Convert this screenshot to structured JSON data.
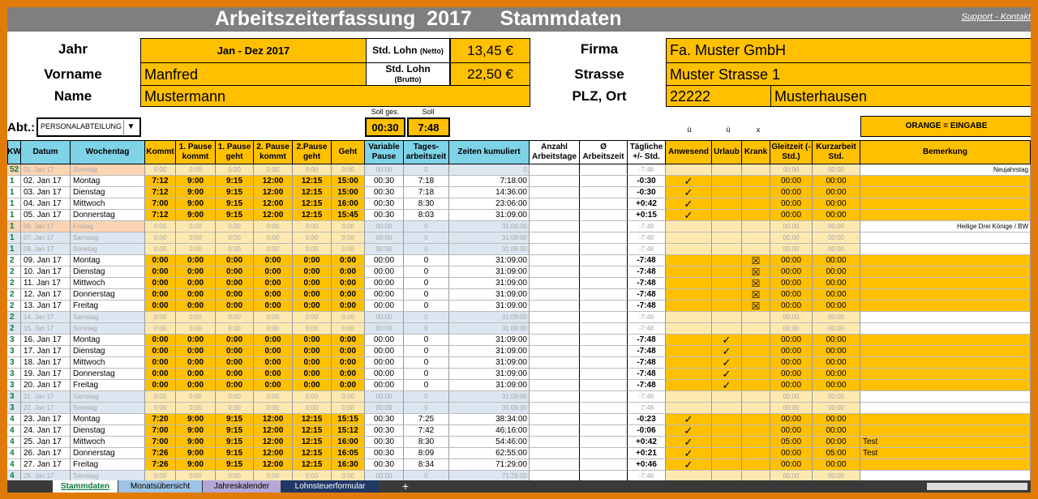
{
  "title": "Arbeitszeiterfassung  2017     Stammdaten",
  "support": "Support - Kontakt",
  "header": {
    "jahr_label": "Jahr",
    "jahr": "Jan - Dez 2017",
    "vorname_label": "Vorname",
    "vorname": "Manfred",
    "name_label": "Name",
    "name": "Mustermann",
    "lohn_netto_label": "Std. Lohn",
    "lohn_netto_sub": "(Netto)",
    "lohn_netto": "13,45 €",
    "lohn_brutto_label": "Std. Lohn",
    "lohn_brutto_sub": "(Brutto)",
    "lohn_brutto": "22,50 €",
    "firma_label": "Firma",
    "firma": "Fa. Muster GmbH",
    "strasse_label": "Strasse",
    "strasse": "Muster Strasse 1",
    "plz_label": "PLZ, Ort",
    "plz": "22222",
    "ort": "Musterhausen",
    "abt_label": "Abt.:",
    "abt_value": "PERSONALABTEILUNG",
    "soll_ges_label": "Soll ges.",
    "soll_label": "Soll",
    "soll_ges": "00:30",
    "soll": "7:48",
    "orange_note": "ORANGE = EINGABE",
    "sym_u1": "ü",
    "sym_u2": "ü",
    "sym_x": "x"
  },
  "columns": [
    "KW",
    "Datum",
    "Wochentag",
    "Kommt",
    "1. Pause kommt",
    "1. Pause geht",
    "2. Pause kommt",
    "2.Pause geht",
    "Geht",
    "Variable Pause",
    "Tages-arbeitszeit",
    "Zeiten kumuliert",
    "Anzahl Arbeitstage",
    "Ø Arbeitszeit",
    "Tägliche +/- Std.",
    "Anwesend",
    "Urlaub",
    "Krank",
    "Gleitzeit (- Std.)",
    "Kurzarbeit Std.",
    "Bemerkung"
  ],
  "rows": [
    {
      "t": "h",
      "kw": "52",
      "d": "01. Jan 17",
      "w": "Sonntag",
      "k": "0:00",
      "p1k": "0:00",
      "p1g": "0:00",
      "p2k": "0:00",
      "p2g": "0:00",
      "g": "0:00",
      "vp": "00:00",
      "ta": "0",
      "zk": "0",
      "pm": "-7:48",
      "a": "",
      "u": "",
      "kr": "",
      "gz": "00:00",
      "ku": "00:00",
      "bem": "Neujahrstag"
    },
    {
      "t": "w",
      "kw": "1",
      "d": "02. Jan 17",
      "w": "Montag",
      "k": "7:12",
      "p1k": "9:00",
      "p1g": "9:15",
      "p2k": "12:00",
      "p2g": "12:15",
      "g": "15:00",
      "vp": "00:30",
      "ta": "7:18",
      "zk": "7:18:00",
      "pm": "-0:30",
      "a": "✓",
      "u": "",
      "kr": "",
      "gz": "00:00",
      "ku": "00:00",
      "bem": ""
    },
    {
      "t": "w",
      "kw": "1",
      "d": "03. Jan 17",
      "w": "Dienstag",
      "k": "7:12",
      "p1k": "9:00",
      "p1g": "9:15",
      "p2k": "12:00",
      "p2g": "12:15",
      "g": "15:00",
      "vp": "00:30",
      "ta": "7:18",
      "zk": "14:36:00",
      "pm": "-0:30",
      "a": "✓",
      "u": "",
      "kr": "",
      "gz": "00:00",
      "ku": "00:00",
      "bem": ""
    },
    {
      "t": "w",
      "kw": "1",
      "d": "04. Jan 17",
      "w": "Mittwoch",
      "k": "7:00",
      "p1k": "9:00",
      "p1g": "9:15",
      "p2k": "12:00",
      "p2g": "12:15",
      "g": "16:00",
      "vp": "00:30",
      "ta": "8:30",
      "zk": "23:06:00",
      "pm": "+0:42",
      "a": "✓",
      "u": "",
      "kr": "",
      "gz": "00:00",
      "ku": "00:00",
      "bem": ""
    },
    {
      "t": "w",
      "kw": "1",
      "d": "05. Jan 17",
      "w": "Donnerstag",
      "k": "7:12",
      "p1k": "9:00",
      "p1g": "9:15",
      "p2k": "12:00",
      "p2g": "12:15",
      "g": "15:45",
      "vp": "00:30",
      "ta": "8:03",
      "zk": "31:09:00",
      "pm": "+0:15",
      "a": "✓",
      "u": "",
      "kr": "",
      "gz": "00:00",
      "ku": "00:00",
      "bem": ""
    },
    {
      "t": "h",
      "kw": "1",
      "d": "06. Jan 17",
      "w": "Freitag",
      "k": "0:00",
      "p1k": "0:00",
      "p1g": "0:00",
      "p2k": "0:00",
      "p2g": "0:00",
      "g": "0:00",
      "vp": "00:00",
      "ta": "0",
      "zk": "31:09:00",
      "pm": "-7:48",
      "a": "",
      "u": "",
      "kr": "",
      "gz": "00:00",
      "ku": "00:00",
      "bem": "Heilige Drei Könige / BW"
    },
    {
      "t": "s",
      "kw": "1",
      "d": "07. Jan 17",
      "w": "Samstag",
      "k": "0:00",
      "p1k": "0:00",
      "p1g": "0:00",
      "p2k": "0:00",
      "p2g": "0:00",
      "g": "0:00",
      "vp": "00:00",
      "ta": "0",
      "zk": "31:09:00",
      "pm": "-7:48",
      "a": "",
      "u": "",
      "kr": "",
      "gz": "00:00",
      "ku": "00:00",
      "bem": ""
    },
    {
      "t": "s",
      "kw": "1",
      "d": "08. Jan 17",
      "w": "Sonntag",
      "k": "0:00",
      "p1k": "0:00",
      "p1g": "0:00",
      "p2k": "0:00",
      "p2g": "0:00",
      "g": "0:00",
      "vp": "00:00",
      "ta": "0",
      "zk": "31:09:00",
      "pm": "-7:48",
      "a": "",
      "u": "",
      "kr": "",
      "gz": "00:00",
      "ku": "00:00",
      "bem": ""
    },
    {
      "t": "w",
      "kw": "2",
      "d": "09. Jan 17",
      "w": "Montag",
      "k": "0:00",
      "p1k": "0:00",
      "p1g": "0:00",
      "p2k": "0:00",
      "p2g": "0:00",
      "g": "0:00",
      "vp": "00:00",
      "ta": "0",
      "zk": "31:09:00",
      "pm": "-7:48",
      "a": "",
      "u": "",
      "kr": "☒",
      "gz": "00:00",
      "ku": "00:00",
      "bem": ""
    },
    {
      "t": "w",
      "kw": "2",
      "d": "10. Jan 17",
      "w": "Dienstag",
      "k": "0:00",
      "p1k": "0:00",
      "p1g": "0:00",
      "p2k": "0:00",
      "p2g": "0:00",
      "g": "0:00",
      "vp": "00:00",
      "ta": "0",
      "zk": "31:09:00",
      "pm": "-7:48",
      "a": "",
      "u": "",
      "kr": "☒",
      "gz": "00:00",
      "ku": "00:00",
      "bem": ""
    },
    {
      "t": "w",
      "kw": "2",
      "d": "11. Jan 17",
      "w": "Mittwoch",
      "k": "0:00",
      "p1k": "0:00",
      "p1g": "0:00",
      "p2k": "0:00",
      "p2g": "0:00",
      "g": "0:00",
      "vp": "00:00",
      "ta": "0",
      "zk": "31:09:00",
      "pm": "-7:48",
      "a": "",
      "u": "",
      "kr": "☒",
      "gz": "00:00",
      "ku": "00:00",
      "bem": ""
    },
    {
      "t": "w",
      "kw": "2",
      "d": "12. Jan 17",
      "w": "Donnerstag",
      "k": "0:00",
      "p1k": "0:00",
      "p1g": "0:00",
      "p2k": "0:00",
      "p2g": "0:00",
      "g": "0:00",
      "vp": "00:00",
      "ta": "0",
      "zk": "31:09:00",
      "pm": "-7:48",
      "a": "",
      "u": "",
      "kr": "☒",
      "gz": "00:00",
      "ku": "00:00",
      "bem": ""
    },
    {
      "t": "w",
      "kw": "2",
      "d": "13. Jan 17",
      "w": "Freitag",
      "k": "0:00",
      "p1k": "0:00",
      "p1g": "0:00",
      "p2k": "0:00",
      "p2g": "0:00",
      "g": "0:00",
      "vp": "00:00",
      "ta": "0",
      "zk": "31:09:00",
      "pm": "-7:48",
      "a": "",
      "u": "",
      "kr": "☒",
      "gz": "00:00",
      "ku": "00:00",
      "bem": ""
    },
    {
      "t": "s",
      "kw": "2",
      "d": "14. Jan 17",
      "w": "Samstag",
      "k": "0:00",
      "p1k": "0:00",
      "p1g": "0:00",
      "p2k": "0:00",
      "p2g": "0:00",
      "g": "0:00",
      "vp": "00:00",
      "ta": "0",
      "zk": "31:09:00",
      "pm": "-7:48",
      "a": "",
      "u": "",
      "kr": "",
      "gz": "00:00",
      "ku": "00:00",
      "bem": ""
    },
    {
      "t": "s",
      "kw": "2",
      "d": "15. Jan 17",
      "w": "Sonntag",
      "k": "0:00",
      "p1k": "0:00",
      "p1g": "0:00",
      "p2k": "0:00",
      "p2g": "0:00",
      "g": "0:00",
      "vp": "00:00",
      "ta": "0",
      "zk": "31:09:00",
      "pm": "-7:48",
      "a": "",
      "u": "",
      "kr": "",
      "gz": "00:00",
      "ku": "00:00",
      "bem": ""
    },
    {
      "t": "w",
      "kw": "3",
      "d": "16. Jan 17",
      "w": "Montag",
      "k": "0:00",
      "p1k": "0:00",
      "p1g": "0:00",
      "p2k": "0:00",
      "p2g": "0:00",
      "g": "0:00",
      "vp": "00:00",
      "ta": "0",
      "zk": "31:09:00",
      "pm": "-7:48",
      "a": "",
      "u": "✓",
      "kr": "",
      "gz": "00:00",
      "ku": "00:00",
      "bem": ""
    },
    {
      "t": "w",
      "kw": "3",
      "d": "17. Jan 17",
      "w": "Dienstag",
      "k": "0:00",
      "p1k": "0:00",
      "p1g": "0:00",
      "p2k": "0:00",
      "p2g": "0:00",
      "g": "0:00",
      "vp": "00:00",
      "ta": "0",
      "zk": "31:09:00",
      "pm": "-7:48",
      "a": "",
      "u": "✓",
      "kr": "",
      "gz": "00:00",
      "ku": "00:00",
      "bem": ""
    },
    {
      "t": "w",
      "kw": "3",
      "d": "18. Jan 17",
      "w": "Mittwoch",
      "k": "0:00",
      "p1k": "0:00",
      "p1g": "0:00",
      "p2k": "0:00",
      "p2g": "0:00",
      "g": "0:00",
      "vp": "00:00",
      "ta": "0",
      "zk": "31:09:00",
      "pm": "-7:48",
      "a": "",
      "u": "✓",
      "kr": "",
      "gz": "00:00",
      "ku": "00:00",
      "bem": ""
    },
    {
      "t": "w",
      "kw": "3",
      "d": "19. Jan 17",
      "w": "Donnerstag",
      "k": "0:00",
      "p1k": "0:00",
      "p1g": "0:00",
      "p2k": "0:00",
      "p2g": "0:00",
      "g": "0:00",
      "vp": "00:00",
      "ta": "0",
      "zk": "31:09:00",
      "pm": "-7:48",
      "a": "",
      "u": "✓",
      "kr": "",
      "gz": "00:00",
      "ku": "00:00",
      "bem": ""
    },
    {
      "t": "w",
      "kw": "3",
      "d": "20. Jan 17",
      "w": "Freitag",
      "k": "0:00",
      "p1k": "0:00",
      "p1g": "0:00",
      "p2k": "0:00",
      "p2g": "0:00",
      "g": "0:00",
      "vp": "00:00",
      "ta": "0",
      "zk": "31:09:00",
      "pm": "-7:48",
      "a": "",
      "u": "✓",
      "kr": "",
      "gz": "00:00",
      "ku": "00:00",
      "bem": ""
    },
    {
      "t": "s",
      "kw": "3",
      "d": "21. Jan 17",
      "w": "Samstag",
      "k": "0:00",
      "p1k": "0:00",
      "p1g": "0:00",
      "p2k": "0:00",
      "p2g": "0:00",
      "g": "0:00",
      "vp": "00:00",
      "ta": "0",
      "zk": "31:09:00",
      "pm": "-7:48",
      "a": "",
      "u": "",
      "kr": "",
      "gz": "00:00",
      "ku": "00:00",
      "bem": ""
    },
    {
      "t": "s",
      "kw": "3",
      "d": "22. Jan 17",
      "w": "Sonntag",
      "k": "0:00",
      "p1k": "0:00",
      "p1g": "0:00",
      "p2k": "0:00",
      "p2g": "0:00",
      "g": "0:00",
      "vp": "00:00",
      "ta": "0",
      "zk": "31:09:00",
      "pm": "-7:48",
      "a": "",
      "u": "",
      "kr": "",
      "gz": "00:00",
      "ku": "00:00",
      "bem": ""
    },
    {
      "t": "w",
      "kw": "4",
      "d": "23. Jan 17",
      "w": "Montag",
      "k": "7:20",
      "p1k": "9:00",
      "p1g": "9:15",
      "p2k": "12:00",
      "p2g": "12:15",
      "g": "15:15",
      "vp": "00:30",
      "ta": "7:25",
      "zk": "38:34:00",
      "pm": "-0:23",
      "a": "✓",
      "u": "",
      "kr": "",
      "gz": "00:00",
      "ku": "00:00",
      "bem": ""
    },
    {
      "t": "w",
      "kw": "4",
      "d": "24. Jan 17",
      "w": "Dienstag",
      "k": "7:00",
      "p1k": "9:00",
      "p1g": "9:15",
      "p2k": "12:00",
      "p2g": "12:15",
      "g": "15:12",
      "vp": "00:30",
      "ta": "7:42",
      "zk": "46:16:00",
      "pm": "-0:06",
      "a": "✓",
      "u": "",
      "kr": "",
      "gz": "00:00",
      "ku": "00:00",
      "bem": ""
    },
    {
      "t": "w",
      "kw": "4",
      "d": "25. Jan 17",
      "w": "Mittwoch",
      "k": "7:00",
      "p1k": "9:00",
      "p1g": "9:15",
      "p2k": "12:00",
      "p2g": "12:15",
      "g": "16:00",
      "vp": "00:30",
      "ta": "8:30",
      "zk": "54:46:00",
      "pm": "+0:42",
      "a": "✓",
      "u": "",
      "kr": "",
      "gz": "05:00",
      "ku": "00:00",
      "bem": "Test"
    },
    {
      "t": "w",
      "kw": "4",
      "d": "26. Jan 17",
      "w": "Donnerstag",
      "k": "7:26",
      "p1k": "9:00",
      "p1g": "9:15",
      "p2k": "12:00",
      "p2g": "12:15",
      "g": "16:05",
      "vp": "00:30",
      "ta": "8:09",
      "zk": "62:55:00",
      "pm": "+0:21",
      "a": "✓",
      "u": "",
      "kr": "",
      "gz": "00:00",
      "ku": "05:00",
      "bem": "Test"
    },
    {
      "t": "w",
      "kw": "4",
      "d": "27. Jan 17",
      "w": "Freitag",
      "k": "7:26",
      "p1k": "9:00",
      "p1g": "9:15",
      "p2k": "12:00",
      "p2g": "12:15",
      "g": "16:30",
      "vp": "00:30",
      "ta": "8:34",
      "zk": "71:29:00",
      "pm": "+0:46",
      "a": "✓",
      "u": "",
      "kr": "",
      "gz": "00:00",
      "ku": "00:00",
      "bem": ""
    },
    {
      "t": "s",
      "kw": "4",
      "d": "28. Jan 17",
      "w": "Samstag",
      "k": "0:00",
      "p1k": "0:00",
      "p1g": "0:00",
      "p2k": "0:00",
      "p2g": "0:00",
      "g": "0:00",
      "vp": "00:00",
      "ta": "0",
      "zk": "71:29:00",
      "pm": "-7:48",
      "a": "",
      "u": "",
      "kr": "",
      "gz": "00:00",
      "ku": "00:00",
      "bem": ""
    }
  ],
  "tabs": [
    "Stammdaten",
    "Monatsübersicht",
    "Jahreskalender",
    "Lohnsteuerformular"
  ],
  "add_sheet": "+"
}
